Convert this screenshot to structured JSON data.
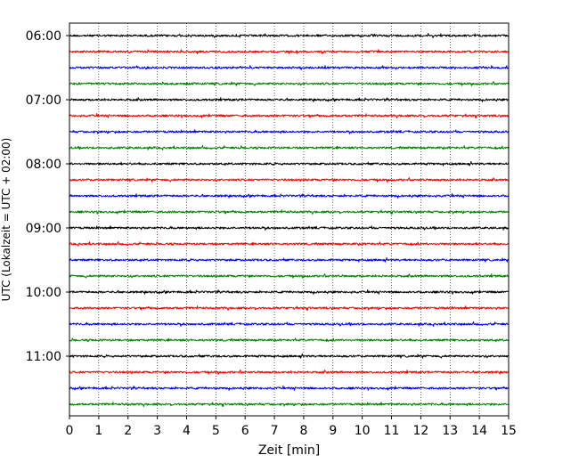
{
  "chart_data": {
    "type": "line",
    "subtype": "helicorder",
    "xlabel": "Zeit  [min]",
    "ylabel": "UTC (Lokalzeit = UTC + 02:00)",
    "xlim": [
      0,
      15
    ],
    "x_ticks": [
      0,
      1,
      2,
      3,
      4,
      5,
      6,
      7,
      8,
      9,
      10,
      11,
      12,
      13,
      14,
      15
    ],
    "y_tick_labels": [
      "06:00",
      "07:00",
      "08:00",
      "09:00",
      "10:00",
      "11:00"
    ],
    "grid": "vertical dotted lines at each minute",
    "trace_interval_minutes": 15,
    "trace_colors": [
      "#000000",
      "#ff0000",
      "#0000ff",
      "#008000"
    ],
    "traces": [
      {
        "start": "06:00",
        "color": "#000000"
      },
      {
        "start": "06:15",
        "color": "#ff0000"
      },
      {
        "start": "06:30",
        "color": "#0000ff"
      },
      {
        "start": "06:45",
        "color": "#008000"
      },
      {
        "start": "07:00",
        "color": "#000000"
      },
      {
        "start": "07:15",
        "color": "#ff0000"
      },
      {
        "start": "07:30",
        "color": "#0000ff"
      },
      {
        "start": "07:45",
        "color": "#008000"
      },
      {
        "start": "08:00",
        "color": "#000000"
      },
      {
        "start": "08:15",
        "color": "#ff0000"
      },
      {
        "start": "08:30",
        "color": "#0000ff"
      },
      {
        "start": "08:45",
        "color": "#008000"
      },
      {
        "start": "09:00",
        "color": "#000000"
      },
      {
        "start": "09:15",
        "color": "#ff0000"
      },
      {
        "start": "09:30",
        "color": "#0000ff"
      },
      {
        "start": "09:45",
        "color": "#008000"
      },
      {
        "start": "10:00",
        "color": "#000000"
      },
      {
        "start": "10:15",
        "color": "#ff0000"
      },
      {
        "start": "10:30",
        "color": "#0000ff"
      },
      {
        "start": "10:45",
        "color": "#008000"
      },
      {
        "start": "11:00",
        "color": "#000000"
      },
      {
        "start": "11:15",
        "color": "#ff0000"
      },
      {
        "start": "11:30",
        "color": "#0000ff"
      },
      {
        "start": "11:45",
        "color": "#008000"
      }
    ]
  }
}
